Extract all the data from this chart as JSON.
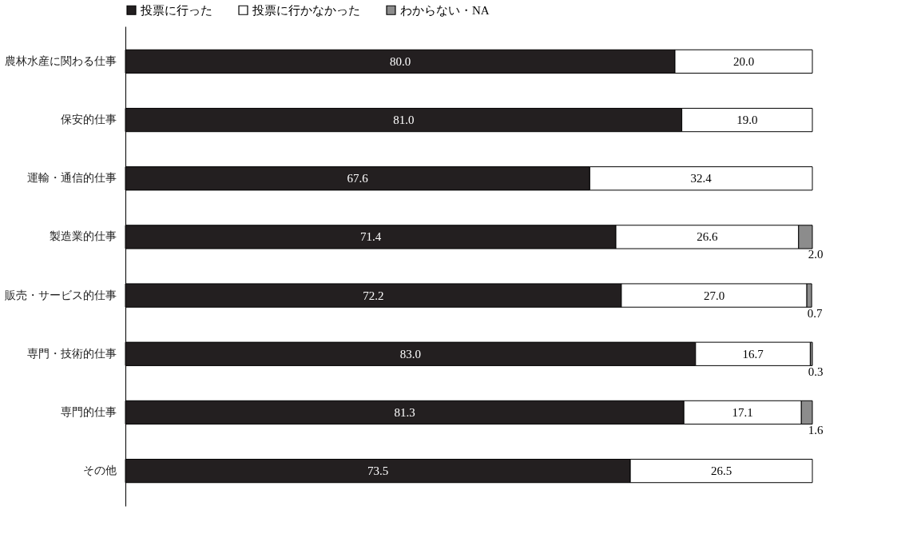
{
  "chart_data": {
    "type": "bar",
    "orientation": "horizontal",
    "stacked": true,
    "legend": "top",
    "grid": false,
    "tick_labels": "y",
    "categories": [
      "農林水産に関わる仕事",
      "保安的仕事",
      "運輸・通信的仕事",
      "製造業的仕事",
      "販売・サービス的仕事",
      "専門・技術的仕事",
      "専門的仕事",
      "その他"
    ],
    "xlim": [
      0,
      100
    ],
    "series": [
      {
        "name": "投票に行った",
        "color": "#231f20",
        "values": [
          80.0,
          81.0,
          67.6,
          71.4,
          72.2,
          83.0,
          81.3,
          73.5
        ],
        "value_labels": [
          "80.0",
          "81.0",
          "67.6",
          "71.4",
          "72.2",
          "83.0",
          "81.3",
          "73.5"
        ]
      },
      {
        "name": "投票に行かなかった",
        "color": "#ffffff",
        "values": [
          20.0,
          19.0,
          32.4,
          26.6,
          27.0,
          16.7,
          17.1,
          26.5
        ],
        "value_labels": [
          "20.0",
          "19.0",
          "32.4",
          "26.6",
          "27.0",
          "16.7",
          "17.1",
          "26.5"
        ]
      },
      {
        "name": "わからない・NA",
        "color": "#8c8c8c",
        "values": [
          null,
          null,
          null,
          2.0,
          0.7,
          0.3,
          1.6,
          null
        ],
        "value_labels": [
          null,
          null,
          null,
          "2.0",
          "0.7",
          "0.3",
          "1.6",
          null
        ]
      }
    ]
  }
}
